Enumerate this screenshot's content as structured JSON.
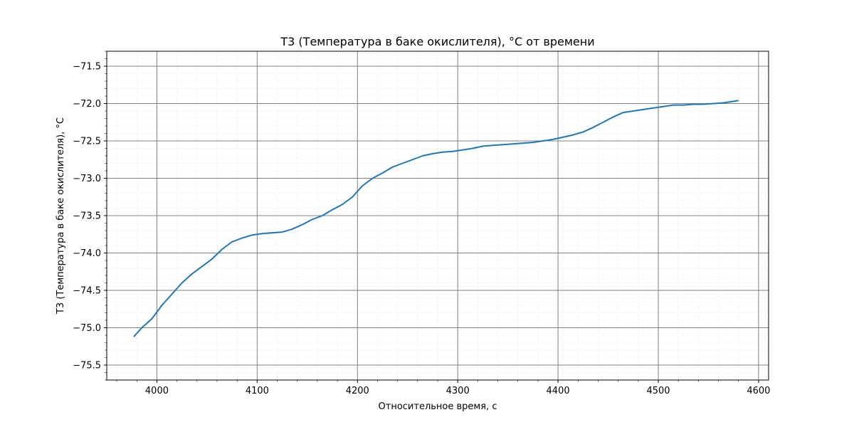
{
  "chart_data": {
    "type": "line",
    "title": "T3 (Температура в баке окислителя), °C от времени",
    "xlabel": "Относительное время, с",
    "ylabel": "T3 (Температура в баке окислителя), °C",
    "xlim": [
      3950,
      4610
    ],
    "ylim": [
      -75.7,
      -71.3
    ],
    "xticks": [
      4000,
      4100,
      4200,
      4300,
      4400,
      4500,
      4600
    ],
    "yticks": [
      -75.5,
      -75.0,
      -74.5,
      -74.0,
      -73.5,
      -73.0,
      -72.5,
      -72.0,
      -71.5
    ],
    "xtick_labels": [
      "4000",
      "4100",
      "4200",
      "4300",
      "4400",
      "4500",
      "4600"
    ],
    "ytick_labels": [
      "−75.5",
      "−75.0",
      "−74.5",
      "−74.0",
      "−73.5",
      "−73.0",
      "−72.5",
      "−72.0",
      "−71.5"
    ],
    "grid": {
      "major": true,
      "minor": true
    },
    "series": [
      {
        "name": "",
        "color": "#1f77b4",
        "x": [
          3977,
          3985,
          3995,
          4005,
          4015,
          4025,
          4035,
          4045,
          4055,
          4065,
          4075,
          4085,
          4095,
          4105,
          4115,
          4125,
          4135,
          4145,
          4155,
          4165,
          4175,
          4185,
          4195,
          4205,
          4215,
          4225,
          4235,
          4245,
          4255,
          4265,
          4275,
          4285,
          4295,
          4305,
          4315,
          4325,
          4335,
          4345,
          4355,
          4365,
          4375,
          4385,
          4395,
          4405,
          4415,
          4425,
          4435,
          4445,
          4455,
          4465,
          4475,
          4485,
          4495,
          4505,
          4515,
          4525,
          4535,
          4545,
          4555,
          4565,
          4575,
          4580
        ],
        "y": [
          -75.12,
          -75.0,
          -74.88,
          -74.7,
          -74.55,
          -74.4,
          -74.28,
          -74.18,
          -74.08,
          -73.95,
          -73.85,
          -73.8,
          -73.76,
          -73.74,
          -73.73,
          -73.72,
          -73.68,
          -73.62,
          -73.55,
          -73.5,
          -73.42,
          -73.35,
          -73.25,
          -73.1,
          -73.0,
          -72.93,
          -72.85,
          -72.8,
          -72.75,
          -72.7,
          -72.67,
          -72.65,
          -72.64,
          -72.62,
          -72.6,
          -72.57,
          -72.56,
          -72.55,
          -72.54,
          -72.53,
          -72.52,
          -72.5,
          -72.48,
          -72.45,
          -72.42,
          -72.38,
          -72.32,
          -72.25,
          -72.18,
          -72.12,
          -72.1,
          -72.08,
          -72.06,
          -72.04,
          -72.02,
          -72.02,
          -72.01,
          -72.01,
          -72.0,
          -71.99,
          -71.97,
          -71.96
        ]
      }
    ]
  }
}
